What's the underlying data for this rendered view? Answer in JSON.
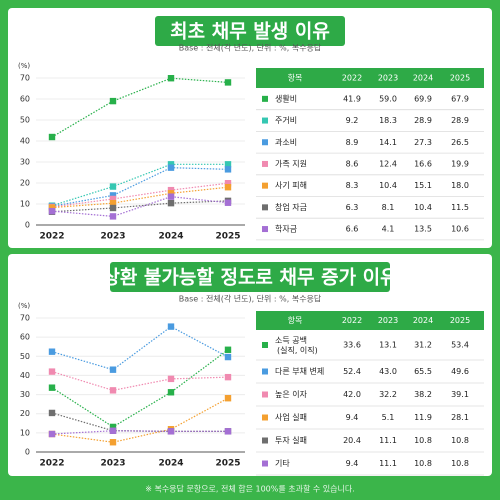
{
  "chart_data": [
    {
      "type": "line",
      "title": "최초 채무 발생 이유",
      "subtitle": "Base : 전체(각 년도), 단위 : %, 복수응답",
      "y_label": "(%)",
      "table_header": "항목",
      "categories": [
        "2022",
        "2023",
        "2024",
        "2025"
      ],
      "ylim": [
        0,
        70
      ],
      "yticks": [
        0,
        10,
        20,
        30,
        40,
        50,
        60,
        70
      ],
      "grid": true,
      "series": [
        {
          "name": "생활비",
          "color": "#27b04a",
          "values": [
            41.9,
            59.0,
            69.9,
            67.9
          ],
          "value_labels": [
            "41.9",
            "59.0",
            "69.9",
            "67.9"
          ]
        },
        {
          "name": "주거비",
          "color": "#35c7b2",
          "values": [
            9.2,
            18.3,
            28.9,
            28.9
          ],
          "value_labels": [
            "9.2",
            "18.3",
            "28.9",
            "28.9"
          ]
        },
        {
          "name": "과소비",
          "color": "#4a9be0",
          "values": [
            8.9,
            14.1,
            27.3,
            26.5
          ],
          "value_labels": [
            "8.9",
            "14.1",
            "27.3",
            "26.5"
          ]
        },
        {
          "name": "가족 지원",
          "color": "#f08ab0",
          "values": [
            8.6,
            12.4,
            16.6,
            19.9
          ],
          "value_labels": [
            "8.6",
            "12.4",
            "16.6",
            "19.9"
          ]
        },
        {
          "name": "사기 피해",
          "color": "#f4a030",
          "values": [
            8.3,
            10.4,
            15.1,
            18.0
          ],
          "value_labels": [
            "8.3",
            "10.4",
            "15.1",
            "18.0"
          ]
        },
        {
          "name": "창업 자금",
          "color": "#6e6e6e",
          "values": [
            6.3,
            8.1,
            10.4,
            11.5
          ],
          "value_labels": [
            "6.3",
            "8.1",
            "10.4",
            "11.5"
          ]
        },
        {
          "name": "학자금",
          "color": "#a46fd4",
          "values": [
            6.6,
            4.1,
            13.5,
            10.6
          ],
          "value_labels": [
            "6.6",
            "4.1",
            "13.5",
            "10.6"
          ]
        }
      ]
    },
    {
      "type": "line",
      "title": "상환 불가능할 정도로 채무 증가 이유",
      "subtitle": "Base : 전체(각 년도), 단위 : %, 복수응답",
      "y_label": "(%)",
      "table_header": "항목",
      "categories": [
        "2022",
        "2023",
        "2024",
        "2025"
      ],
      "ylim": [
        0,
        70
      ],
      "yticks": [
        0,
        10,
        20,
        30,
        40,
        50,
        60,
        70
      ],
      "grid": true,
      "series": [
        {
          "name": "소득 공백\n(실직, 이직)",
          "color": "#27b04a",
          "values": [
            33.6,
            13.1,
            31.2,
            53.4
          ],
          "value_labels": [
            "33.6",
            "13.1",
            "31.2",
            "53.4"
          ]
        },
        {
          "name": "다른 부채 변제",
          "color": "#4a9be0",
          "values": [
            52.4,
            43.0,
            65.5,
            49.6
          ],
          "value_labels": [
            "52.4",
            "43.0",
            "65.5",
            "49.6"
          ]
        },
        {
          "name": "높은 이자",
          "color": "#f08ab0",
          "values": [
            42.0,
            32.2,
            38.2,
            39.1
          ],
          "value_labels": [
            "42.0",
            "32.2",
            "38.2",
            "39.1"
          ]
        },
        {
          "name": "사업 실패",
          "color": "#f4a030",
          "values": [
            9.4,
            5.1,
            11.9,
            28.1
          ],
          "value_labels": [
            "9.4",
            "5.1",
            "11.9",
            "28.1"
          ]
        },
        {
          "name": "투자 실패",
          "color": "#6e6e6e",
          "values": [
            20.4,
            11.1,
            10.8,
            10.8
          ],
          "value_labels": [
            "20.4",
            "11.1",
            "10.8",
            "10.8"
          ]
        },
        {
          "name": "기타",
          "color": "#a46fd4",
          "values": [
            9.4,
            11.1,
            10.8,
            10.8
          ],
          "value_labels": [
            "9.4",
            "11.1",
            "10.8",
            "10.8"
          ]
        }
      ]
    }
  ],
  "footnote": "※ 복수응답 문항으로, 전체 합은 100%를 초과할 수 있습니다."
}
